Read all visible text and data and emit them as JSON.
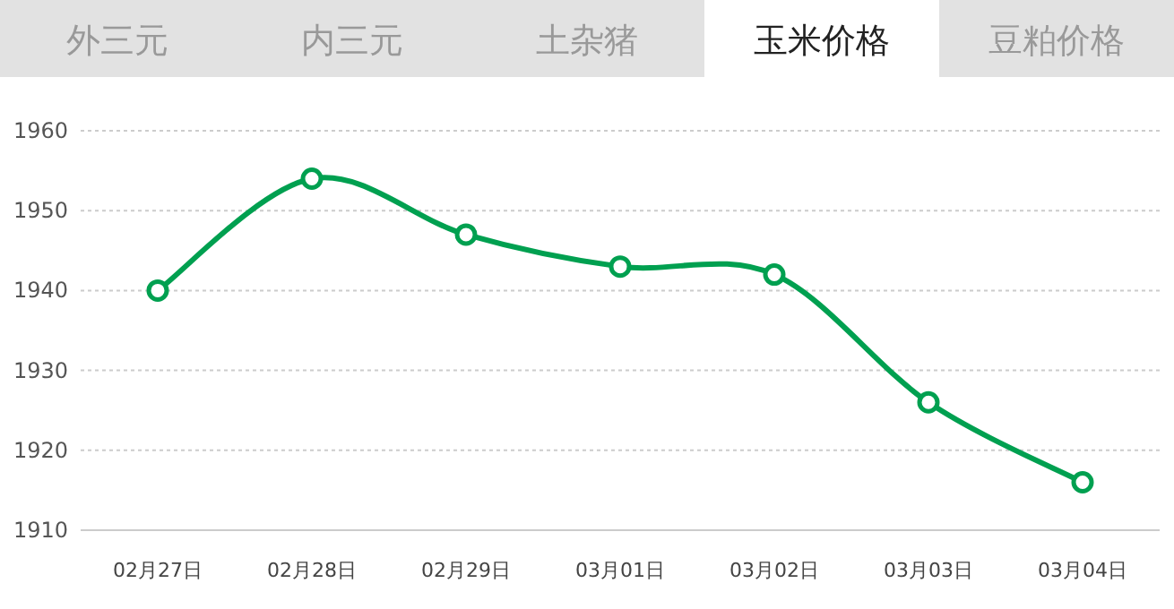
{
  "chart_data": {
    "type": "line",
    "title": "玉米价格",
    "annotations": [
      "外三元",
      "内三元",
      "土杂猪",
      "豆粕价格"
    ],
    "categories": [
      "02月27日",
      "02月28日",
      "02月29日",
      "03月01日",
      "03月02日",
      "03月03日",
      "03月04日"
    ],
    "series": [
      {
        "color": "#00a050",
        "values": [
          1940,
          1954,
          1947,
          1943,
          1942,
          1926,
          1916
        ]
      }
    ],
    "ylim": [
      1910,
      1960
    ],
    "yticks": [
      1910,
      1920,
      1930,
      1940,
      1950,
      1960
    ],
    "grid": "y",
    "marker": "circle",
    "line_style": "solid"
  }
}
